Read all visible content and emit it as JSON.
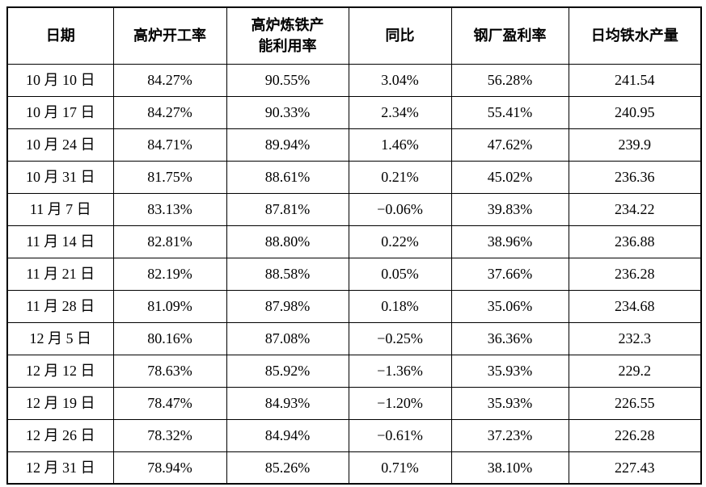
{
  "table": {
    "columns": [
      {
        "key": "date",
        "label": "日期"
      },
      {
        "key": "operating_rate",
        "label": "高炉开工率"
      },
      {
        "key": "capacity_utilization",
        "label": "高炉炼铁产能利用率"
      },
      {
        "key": "yoy",
        "label": "同比"
      },
      {
        "key": "profit_ratio",
        "label": "钢厂盈利率"
      },
      {
        "key": "daily_hot_metal",
        "label": "日均铁水产量"
      }
    ],
    "rows": [
      [
        "10 月 10 日",
        "84.27%",
        "90.55%",
        "3.04%",
        "56.28%",
        "241.54"
      ],
      [
        "10 月 17 日",
        "84.27%",
        "90.33%",
        "2.34%",
        "55.41%",
        "240.95"
      ],
      [
        "10 月 24 日",
        "84.71%",
        "89.94%",
        "1.46%",
        "47.62%",
        "239.9"
      ],
      [
        "10 月 31 日",
        "81.75%",
        "88.61%",
        "0.21%",
        "45.02%",
        "236.36"
      ],
      [
        "11 月 7 日",
        "83.13%",
        "87.81%",
        "−0.06%",
        "39.83%",
        "234.22"
      ],
      [
        "11 月 14 日",
        "82.81%",
        "88.80%",
        "0.22%",
        "38.96%",
        "236.88"
      ],
      [
        "11 月 21 日",
        "82.19%",
        "88.58%",
        "0.05%",
        "37.66%",
        "236.28"
      ],
      [
        "11 月 28 日",
        "81.09%",
        "87.98%",
        "0.18%",
        "35.06%",
        "234.68"
      ],
      [
        "12 月 5 日",
        "80.16%",
        "87.08%",
        "−0.25%",
        "36.36%",
        "232.3"
      ],
      [
        "12 月 12 日",
        "78.63%",
        "85.92%",
        "−1.36%",
        "35.93%",
        "229.2"
      ],
      [
        "12 月 19 日",
        "78.47%",
        "84.93%",
        "−1.20%",
        "35.93%",
        "226.55"
      ],
      [
        "12 月 26 日",
        "78.32%",
        "84.94%",
        "−0.61%",
        "37.23%",
        "226.28"
      ],
      [
        "12 月 31 日",
        "78.94%",
        "85.26%",
        "0.71%",
        "38.10%",
        "227.43"
      ]
    ],
    "colors": {
      "border": "#000000",
      "text": "#000000",
      "background": "#ffffff"
    }
  }
}
